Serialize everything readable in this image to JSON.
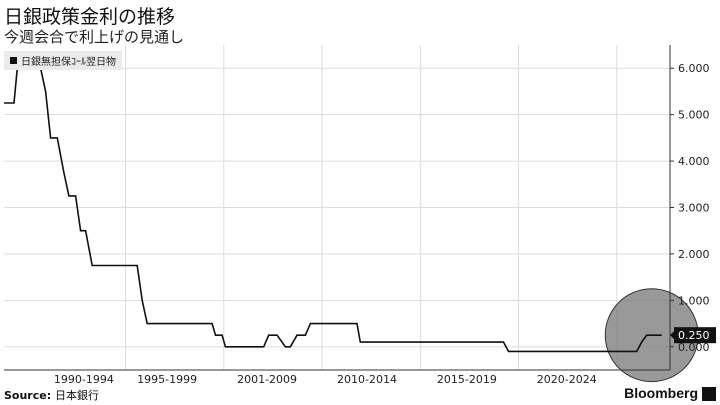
{
  "header": {
    "title": "日銀政策金利の推移",
    "subtitle": "今週会合で利上げの見通し"
  },
  "legend": {
    "label": "日銀無担保ｺｰﾙ翌日物"
  },
  "footer": {
    "source_label": "Source:",
    "source_text": "日本銀行",
    "brand": "Bloomberg"
  },
  "colors": {
    "line": "#111111",
    "grid": "#dddddd",
    "highlight": "#7f7f7f"
  },
  "chart_data": {
    "type": "line",
    "xlim": [
      1986,
      2026
    ],
    "ylim": [
      -0.5,
      6.5
    ],
    "ytick_values": [
      0,
      1,
      2,
      3,
      4,
      5,
      6
    ],
    "ytick_labels": [
      "0.000",
      "1.000",
      "2.000",
      "3.000",
      "4.000",
      "5.000",
      "6.000"
    ],
    "x_labels": [
      {
        "label": "1990-1994",
        "x": 1990.8
      },
      {
        "label": "1995-1999",
        "x": 1995.8
      },
      {
        "label": "2001-2009",
        "x": 2001.8
      },
      {
        "label": "2010-2014",
        "x": 2007.8
      },
      {
        "label": "2015-2019",
        "x": 2013.8
      },
      {
        "label": "2020-2024",
        "x": 2019.8
      }
    ],
    "x_gridlines": [
      1993.3,
      1999.2,
      2005.1,
      2011.0,
      2016.9,
      2022.8
    ],
    "last_value_label": "0.250",
    "highlight": {
      "x": 2024.9,
      "y": 0.25,
      "radius_y": 1.0
    },
    "series": [
      {
        "values": [
          [
            1986.0,
            5.25
          ],
          [
            1986.6,
            5.25
          ],
          [
            1986.8,
            6.0
          ],
          [
            1988.2,
            6.0
          ],
          [
            1988.5,
            5.5
          ],
          [
            1988.8,
            4.5
          ],
          [
            1989.2,
            4.5
          ],
          [
            1989.6,
            3.75
          ],
          [
            1989.9,
            3.25
          ],
          [
            1990.3,
            3.25
          ],
          [
            1990.6,
            2.5
          ],
          [
            1990.9,
            2.5
          ],
          [
            1991.3,
            1.75
          ],
          [
            1994.0,
            1.75
          ],
          [
            1994.3,
            1.0
          ],
          [
            1994.6,
            0.5
          ],
          [
            1998.5,
            0.5
          ],
          [
            1998.7,
            0.25
          ],
          [
            1999.1,
            0.25
          ],
          [
            1999.3,
            0.0
          ],
          [
            2001.6,
            0.0
          ],
          [
            2001.9,
            0.25
          ],
          [
            2002.4,
            0.25
          ],
          [
            2002.9,
            0.0
          ],
          [
            2003.2,
            0.0
          ],
          [
            2003.6,
            0.25
          ],
          [
            2004.1,
            0.25
          ],
          [
            2004.4,
            0.5
          ],
          [
            2007.2,
            0.5
          ],
          [
            2007.4,
            0.1
          ],
          [
            2016.0,
            0.1
          ],
          [
            2016.3,
            -0.1
          ],
          [
            2024.0,
            -0.1
          ],
          [
            2024.3,
            0.1
          ],
          [
            2024.6,
            0.25
          ],
          [
            2025.5,
            0.25
          ]
        ]
      }
    ]
  }
}
